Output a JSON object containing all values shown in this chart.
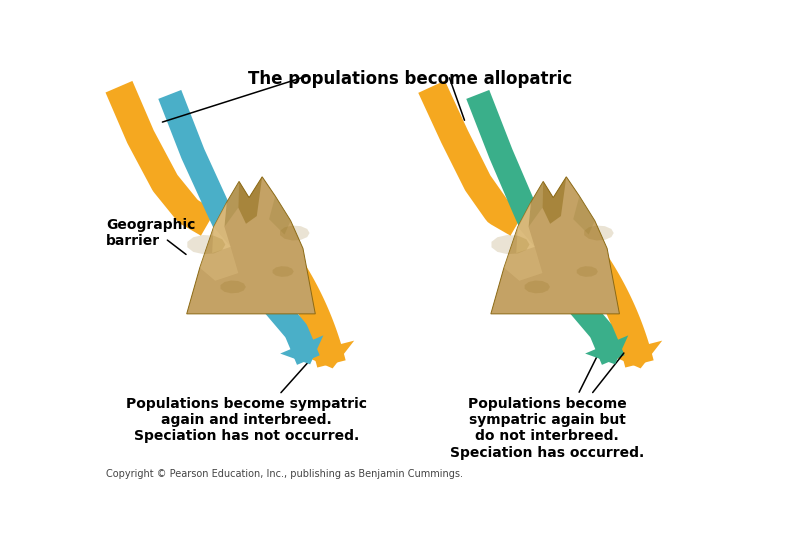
{
  "bg_color": "#ffffff",
  "title_text": "The populations become allopatric",
  "left_bottom_label": "Populations become sympatric\nagain and interbreed.\nSpeciation has not occurred.",
  "right_bottom_label": "Populations become\nsympatric again but\ndo not interbreed.\nSpeciation has occurred.",
  "geo_barrier_label": "Geographic\nbarrier",
  "copyright_text": "Copyright © Pearson Education, Inc., publishing as Benjamin Cummings.",
  "orange_color": "#F5A820",
  "blue_color": "#4AAFC8",
  "teal_color": "#3AAF8A",
  "mountain_base": "#C4A265",
  "mountain_dark": "#8B6914",
  "mountain_light": "#E8C98A",
  "mountain_shadow": "#A08840"
}
